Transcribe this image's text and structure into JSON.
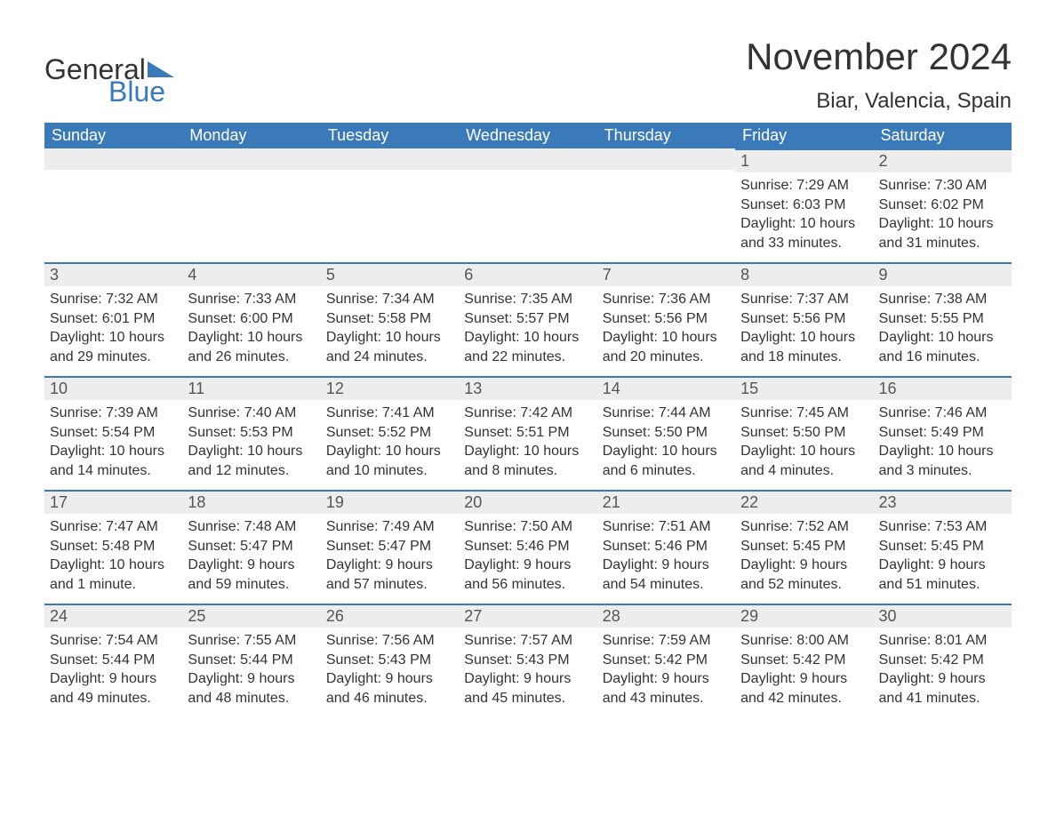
{
  "brand": {
    "part1": "General",
    "part2": "Blue",
    "text_color": "#333333",
    "accent_color": "#3a7ab8"
  },
  "title": "November 2024",
  "location": "Biar, Valencia, Spain",
  "colors": {
    "header_bg": "#3a7ab8",
    "header_text": "#ffffff",
    "daynum_bg": "#ededed",
    "daynum_border": "#3a7ab8",
    "body_text": "#333333",
    "page_bg": "#ffffff"
  },
  "fonts": {
    "title_size": 42,
    "location_size": 24,
    "header_size": 18,
    "daynum_size": 18,
    "body_size": 16
  },
  "weekdays": [
    "Sunday",
    "Monday",
    "Tuesday",
    "Wednesday",
    "Thursday",
    "Friday",
    "Saturday"
  ],
  "weeks": [
    [
      null,
      null,
      null,
      null,
      null,
      {
        "day": "1",
        "sunrise": "Sunrise: 7:29 AM",
        "sunset": "Sunset: 6:03 PM",
        "daylight1": "Daylight: 10 hours",
        "daylight2": "and 33 minutes."
      },
      {
        "day": "2",
        "sunrise": "Sunrise: 7:30 AM",
        "sunset": "Sunset: 6:02 PM",
        "daylight1": "Daylight: 10 hours",
        "daylight2": "and 31 minutes."
      }
    ],
    [
      {
        "day": "3",
        "sunrise": "Sunrise: 7:32 AM",
        "sunset": "Sunset: 6:01 PM",
        "daylight1": "Daylight: 10 hours",
        "daylight2": "and 29 minutes."
      },
      {
        "day": "4",
        "sunrise": "Sunrise: 7:33 AM",
        "sunset": "Sunset: 6:00 PM",
        "daylight1": "Daylight: 10 hours",
        "daylight2": "and 26 minutes."
      },
      {
        "day": "5",
        "sunrise": "Sunrise: 7:34 AM",
        "sunset": "Sunset: 5:58 PM",
        "daylight1": "Daylight: 10 hours",
        "daylight2": "and 24 minutes."
      },
      {
        "day": "6",
        "sunrise": "Sunrise: 7:35 AM",
        "sunset": "Sunset: 5:57 PM",
        "daylight1": "Daylight: 10 hours",
        "daylight2": "and 22 minutes."
      },
      {
        "day": "7",
        "sunrise": "Sunrise: 7:36 AM",
        "sunset": "Sunset: 5:56 PM",
        "daylight1": "Daylight: 10 hours",
        "daylight2": "and 20 minutes."
      },
      {
        "day": "8",
        "sunrise": "Sunrise: 7:37 AM",
        "sunset": "Sunset: 5:56 PM",
        "daylight1": "Daylight: 10 hours",
        "daylight2": "and 18 minutes."
      },
      {
        "day": "9",
        "sunrise": "Sunrise: 7:38 AM",
        "sunset": "Sunset: 5:55 PM",
        "daylight1": "Daylight: 10 hours",
        "daylight2": "and 16 minutes."
      }
    ],
    [
      {
        "day": "10",
        "sunrise": "Sunrise: 7:39 AM",
        "sunset": "Sunset: 5:54 PM",
        "daylight1": "Daylight: 10 hours",
        "daylight2": "and 14 minutes."
      },
      {
        "day": "11",
        "sunrise": "Sunrise: 7:40 AM",
        "sunset": "Sunset: 5:53 PM",
        "daylight1": "Daylight: 10 hours",
        "daylight2": "and 12 minutes."
      },
      {
        "day": "12",
        "sunrise": "Sunrise: 7:41 AM",
        "sunset": "Sunset: 5:52 PM",
        "daylight1": "Daylight: 10 hours",
        "daylight2": "and 10 minutes."
      },
      {
        "day": "13",
        "sunrise": "Sunrise: 7:42 AM",
        "sunset": "Sunset: 5:51 PM",
        "daylight1": "Daylight: 10 hours",
        "daylight2": "and 8 minutes."
      },
      {
        "day": "14",
        "sunrise": "Sunrise: 7:44 AM",
        "sunset": "Sunset: 5:50 PM",
        "daylight1": "Daylight: 10 hours",
        "daylight2": "and 6 minutes."
      },
      {
        "day": "15",
        "sunrise": "Sunrise: 7:45 AM",
        "sunset": "Sunset: 5:50 PM",
        "daylight1": "Daylight: 10 hours",
        "daylight2": "and 4 minutes."
      },
      {
        "day": "16",
        "sunrise": "Sunrise: 7:46 AM",
        "sunset": "Sunset: 5:49 PM",
        "daylight1": "Daylight: 10 hours",
        "daylight2": "and 3 minutes."
      }
    ],
    [
      {
        "day": "17",
        "sunrise": "Sunrise: 7:47 AM",
        "sunset": "Sunset: 5:48 PM",
        "daylight1": "Daylight: 10 hours",
        "daylight2": "and 1 minute."
      },
      {
        "day": "18",
        "sunrise": "Sunrise: 7:48 AM",
        "sunset": "Sunset: 5:47 PM",
        "daylight1": "Daylight: 9 hours",
        "daylight2": "and 59 minutes."
      },
      {
        "day": "19",
        "sunrise": "Sunrise: 7:49 AM",
        "sunset": "Sunset: 5:47 PM",
        "daylight1": "Daylight: 9 hours",
        "daylight2": "and 57 minutes."
      },
      {
        "day": "20",
        "sunrise": "Sunrise: 7:50 AM",
        "sunset": "Sunset: 5:46 PM",
        "daylight1": "Daylight: 9 hours",
        "daylight2": "and 56 minutes."
      },
      {
        "day": "21",
        "sunrise": "Sunrise: 7:51 AM",
        "sunset": "Sunset: 5:46 PM",
        "daylight1": "Daylight: 9 hours",
        "daylight2": "and 54 minutes."
      },
      {
        "day": "22",
        "sunrise": "Sunrise: 7:52 AM",
        "sunset": "Sunset: 5:45 PM",
        "daylight1": "Daylight: 9 hours",
        "daylight2": "and 52 minutes."
      },
      {
        "day": "23",
        "sunrise": "Sunrise: 7:53 AM",
        "sunset": "Sunset: 5:45 PM",
        "daylight1": "Daylight: 9 hours",
        "daylight2": "and 51 minutes."
      }
    ],
    [
      {
        "day": "24",
        "sunrise": "Sunrise: 7:54 AM",
        "sunset": "Sunset: 5:44 PM",
        "daylight1": "Daylight: 9 hours",
        "daylight2": "and 49 minutes."
      },
      {
        "day": "25",
        "sunrise": "Sunrise: 7:55 AM",
        "sunset": "Sunset: 5:44 PM",
        "daylight1": "Daylight: 9 hours",
        "daylight2": "and 48 minutes."
      },
      {
        "day": "26",
        "sunrise": "Sunrise: 7:56 AM",
        "sunset": "Sunset: 5:43 PM",
        "daylight1": "Daylight: 9 hours",
        "daylight2": "and 46 minutes."
      },
      {
        "day": "27",
        "sunrise": "Sunrise: 7:57 AM",
        "sunset": "Sunset: 5:43 PM",
        "daylight1": "Daylight: 9 hours",
        "daylight2": "and 45 minutes."
      },
      {
        "day": "28",
        "sunrise": "Sunrise: 7:59 AM",
        "sunset": "Sunset: 5:42 PM",
        "daylight1": "Daylight: 9 hours",
        "daylight2": "and 43 minutes."
      },
      {
        "day": "29",
        "sunrise": "Sunrise: 8:00 AM",
        "sunset": "Sunset: 5:42 PM",
        "daylight1": "Daylight: 9 hours",
        "daylight2": "and 42 minutes."
      },
      {
        "day": "30",
        "sunrise": "Sunrise: 8:01 AM",
        "sunset": "Sunset: 5:42 PM",
        "daylight1": "Daylight: 9 hours",
        "daylight2": "and 41 minutes."
      }
    ]
  ]
}
